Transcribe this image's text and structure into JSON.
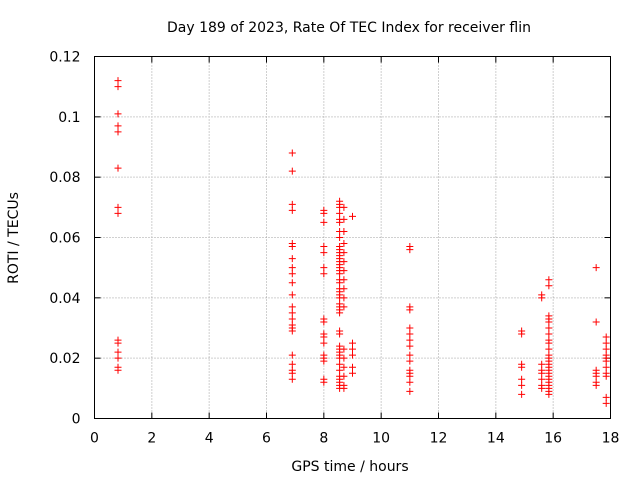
{
  "chart_data": {
    "type": "scatter",
    "title": "Day 189 of 2023, Rate Of TEC Index for receiver flin",
    "xlabel": "GPS time / hours",
    "ylabel": "ROTI / TECUs",
    "xlim": [
      0,
      18
    ],
    "ylim": [
      0,
      0.12
    ],
    "xticks": [
      0,
      2,
      4,
      6,
      8,
      10,
      12,
      14,
      16,
      18
    ],
    "yticks": [
      0,
      0.02,
      0.04,
      0.06,
      0.08,
      0.1,
      0.12
    ],
    "xtick_labels": [
      "0",
      "2",
      "4",
      "6",
      "8",
      "10",
      "12",
      "14",
      "16",
      "18"
    ],
    "ytick_labels": [
      "0",
      "0.02",
      "0.04",
      "0.06",
      "0.08",
      "0.1",
      "0.12"
    ],
    "grid": true,
    "legend": "none",
    "marker": "plus",
    "color": "#ff0000",
    "points": [
      [
        0.82,
        0.112
      ],
      [
        0.82,
        0.11
      ],
      [
        0.82,
        0.101
      ],
      [
        0.82,
        0.097
      ],
      [
        0.82,
        0.095
      ],
      [
        0.82,
        0.083
      ],
      [
        0.82,
        0.07
      ],
      [
        0.82,
        0.068
      ],
      [
        0.82,
        0.026
      ],
      [
        0.82,
        0.025
      ],
      [
        0.82,
        0.022
      ],
      [
        0.82,
        0.02
      ],
      [
        0.82,
        0.017
      ],
      [
        0.82,
        0.016
      ],
      [
        6.9,
        0.088
      ],
      [
        6.9,
        0.082
      ],
      [
        6.9,
        0.071
      ],
      [
        6.9,
        0.069
      ],
      [
        6.9,
        0.058
      ],
      [
        6.9,
        0.057
      ],
      [
        6.9,
        0.053
      ],
      [
        6.9,
        0.05
      ],
      [
        6.9,
        0.048
      ],
      [
        6.9,
        0.045
      ],
      [
        6.9,
        0.041
      ],
      [
        6.9,
        0.037
      ],
      [
        6.9,
        0.035
      ],
      [
        6.9,
        0.033
      ],
      [
        6.9,
        0.031
      ],
      [
        6.9,
        0.03
      ],
      [
        6.9,
        0.029
      ],
      [
        6.9,
        0.021
      ],
      [
        6.9,
        0.018
      ],
      [
        6.9,
        0.016
      ],
      [
        6.9,
        0.015
      ],
      [
        6.9,
        0.013
      ],
      [
        8.0,
        0.069
      ],
      [
        8.0,
        0.068
      ],
      [
        8.0,
        0.065
      ],
      [
        8.0,
        0.057
      ],
      [
        8.0,
        0.055
      ],
      [
        8.0,
        0.05
      ],
      [
        8.0,
        0.048
      ],
      [
        8.0,
        0.033
      ],
      [
        8.0,
        0.032
      ],
      [
        8.0,
        0.028
      ],
      [
        8.0,
        0.027
      ],
      [
        8.0,
        0.025
      ],
      [
        8.0,
        0.021
      ],
      [
        8.0,
        0.02
      ],
      [
        8.0,
        0.019
      ],
      [
        8.0,
        0.013
      ],
      [
        8.0,
        0.012
      ],
      [
        8.55,
        0.072
      ],
      [
        8.55,
        0.071
      ],
      [
        8.55,
        0.07
      ],
      [
        8.55,
        0.068
      ],
      [
        8.55,
        0.066
      ],
      [
        8.55,
        0.065
      ],
      [
        8.55,
        0.062
      ],
      [
        8.55,
        0.06
      ],
      [
        8.55,
        0.057
      ],
      [
        8.55,
        0.056
      ],
      [
        8.55,
        0.055
      ],
      [
        8.55,
        0.054
      ],
      [
        8.55,
        0.053
      ],
      [
        8.55,
        0.052
      ],
      [
        8.55,
        0.051
      ],
      [
        8.55,
        0.05
      ],
      [
        8.55,
        0.049
      ],
      [
        8.55,
        0.048
      ],
      [
        8.55,
        0.046
      ],
      [
        8.55,
        0.045
      ],
      [
        8.55,
        0.043
      ],
      [
        8.55,
        0.042
      ],
      [
        8.55,
        0.041
      ],
      [
        8.55,
        0.04
      ],
      [
        8.55,
        0.038
      ],
      [
        8.55,
        0.037
      ],
      [
        8.55,
        0.036
      ],
      [
        8.55,
        0.035
      ],
      [
        8.55,
        0.029
      ],
      [
        8.55,
        0.028
      ],
      [
        8.55,
        0.024
      ],
      [
        8.55,
        0.023
      ],
      [
        8.55,
        0.022
      ],
      [
        8.55,
        0.021
      ],
      [
        8.55,
        0.02
      ],
      [
        8.55,
        0.018
      ],
      [
        8.55,
        0.016
      ],
      [
        8.55,
        0.014
      ],
      [
        8.55,
        0.013
      ],
      [
        8.55,
        0.012
      ],
      [
        8.55,
        0.011
      ],
      [
        8.55,
        0.01
      ],
      [
        8.7,
        0.07
      ],
      [
        8.7,
        0.066
      ],
      [
        8.7,
        0.062
      ],
      [
        8.7,
        0.058
      ],
      [
        8.7,
        0.055
      ],
      [
        8.7,
        0.052
      ],
      [
        8.7,
        0.049
      ],
      [
        8.7,
        0.046
      ],
      [
        8.7,
        0.043
      ],
      [
        8.7,
        0.04
      ],
      [
        8.7,
        0.037
      ],
      [
        8.7,
        0.023
      ],
      [
        8.7,
        0.02
      ],
      [
        8.7,
        0.017
      ],
      [
        8.7,
        0.014
      ],
      [
        8.7,
        0.011
      ],
      [
        8.7,
        0.01
      ],
      [
        9.0,
        0.067
      ],
      [
        9.0,
        0.025
      ],
      [
        9.0,
        0.023
      ],
      [
        9.0,
        0.021
      ],
      [
        9.0,
        0.017
      ],
      [
        9.0,
        0.015
      ],
      [
        11.0,
        0.057
      ],
      [
        11.0,
        0.056
      ],
      [
        11.0,
        0.037
      ],
      [
        11.0,
        0.036
      ],
      [
        11.0,
        0.03
      ],
      [
        11.0,
        0.028
      ],
      [
        11.0,
        0.026
      ],
      [
        11.0,
        0.024
      ],
      [
        11.0,
        0.021
      ],
      [
        11.0,
        0.019
      ],
      [
        11.0,
        0.016
      ],
      [
        11.0,
        0.015
      ],
      [
        11.0,
        0.014
      ],
      [
        11.0,
        0.012
      ],
      [
        11.0,
        0.009
      ],
      [
        14.9,
        0.029
      ],
      [
        14.9,
        0.028
      ],
      [
        14.9,
        0.018
      ],
      [
        14.9,
        0.017
      ],
      [
        14.9,
        0.013
      ],
      [
        14.9,
        0.011
      ],
      [
        14.9,
        0.008
      ],
      [
        15.6,
        0.041
      ],
      [
        15.6,
        0.04
      ],
      [
        15.6,
        0.018
      ],
      [
        15.6,
        0.016
      ],
      [
        15.6,
        0.015
      ],
      [
        15.6,
        0.013
      ],
      [
        15.6,
        0.011
      ],
      [
        15.6,
        0.01
      ],
      [
        15.85,
        0.046
      ],
      [
        15.85,
        0.044
      ],
      [
        15.85,
        0.034
      ],
      [
        15.85,
        0.033
      ],
      [
        15.85,
        0.032
      ],
      [
        15.85,
        0.03
      ],
      [
        15.85,
        0.028
      ],
      [
        15.85,
        0.026
      ],
      [
        15.85,
        0.025
      ],
      [
        15.85,
        0.023
      ],
      [
        15.85,
        0.021
      ],
      [
        15.85,
        0.02
      ],
      [
        15.85,
        0.019
      ],
      [
        15.85,
        0.018
      ],
      [
        15.85,
        0.017
      ],
      [
        15.85,
        0.016
      ],
      [
        15.85,
        0.015
      ],
      [
        15.85,
        0.014
      ],
      [
        15.85,
        0.013
      ],
      [
        15.85,
        0.012
      ],
      [
        15.85,
        0.011
      ],
      [
        15.85,
        0.01
      ],
      [
        15.85,
        0.009
      ],
      [
        15.85,
        0.008
      ],
      [
        17.5,
        0.05
      ],
      [
        17.5,
        0.032
      ],
      [
        17.5,
        0.016
      ],
      [
        17.5,
        0.015
      ],
      [
        17.5,
        0.014
      ],
      [
        17.5,
        0.012
      ],
      [
        17.5,
        0.011
      ],
      [
        17.85,
        0.027
      ],
      [
        17.85,
        0.025
      ],
      [
        17.85,
        0.023
      ],
      [
        17.85,
        0.021
      ],
      [
        17.85,
        0.02
      ],
      [
        17.85,
        0.019
      ],
      [
        17.85,
        0.017
      ],
      [
        17.85,
        0.015
      ],
      [
        17.85,
        0.014
      ],
      [
        17.85,
        0.007
      ],
      [
        17.85,
        0.005
      ]
    ]
  }
}
